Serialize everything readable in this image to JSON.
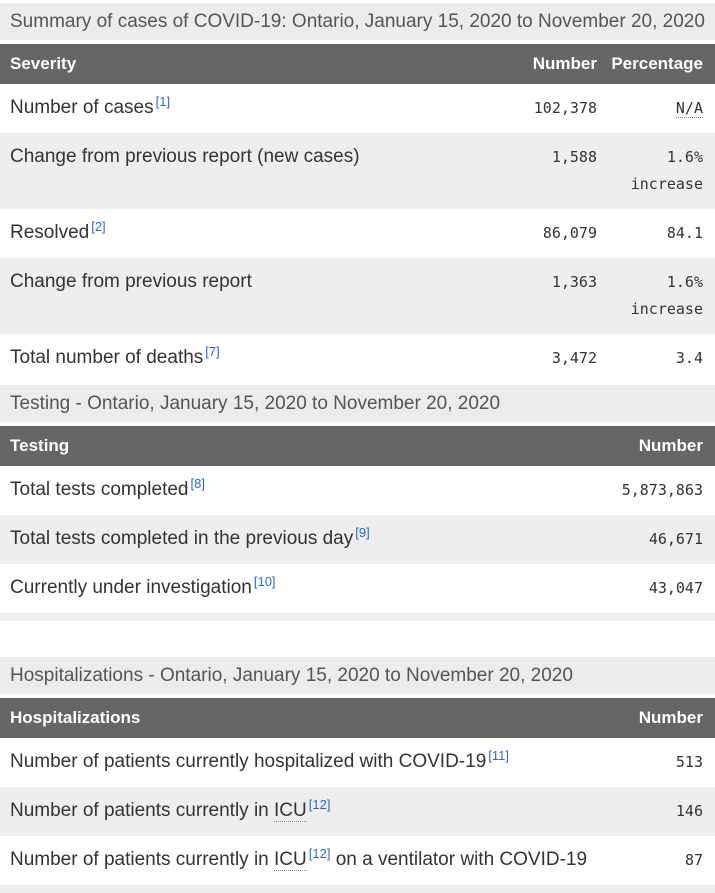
{
  "colors": {
    "caption_bg": "#ececec",
    "caption_text": "#555555",
    "table_header_bg": "#666666",
    "table_header_text": "#ffffff",
    "stripe_row_bg": "#eeeeee",
    "row_text": "#333333",
    "footnote_link": "#2b69c6"
  },
  "tables": [
    {
      "caption": "Summary of cases of COVID-19: Ontario, January 15, 2020 to November 20, 2020",
      "columns": [
        "Severity",
        "Number",
        "Percentage"
      ],
      "rows": [
        {
          "label": [
            {
              "t": "text",
              "v": "Number of cases"
            },
            {
              "t": "ref",
              "v": "[1]"
            }
          ],
          "number": "102,378",
          "percentage": [
            {
              "t": "abbr",
              "v": "N/A"
            }
          ]
        },
        {
          "label": [
            {
              "t": "text",
              "v": "Change from previous report (new cases)"
            }
          ],
          "number": "1,588",
          "percentage": [
            {
              "t": "text",
              "v": "1.6% increase"
            }
          ]
        },
        {
          "label": [
            {
              "t": "text",
              "v": "Resolved"
            },
            {
              "t": "ref",
              "v": "[2]"
            }
          ],
          "number": "86,079",
          "percentage": [
            {
              "t": "text",
              "v": "84.1"
            }
          ]
        },
        {
          "label": [
            {
              "t": "text",
              "v": "Change from previous report"
            }
          ],
          "number": "1,363",
          "percentage": [
            {
              "t": "text",
              "v": "1.6% increase"
            }
          ]
        },
        {
          "label": [
            {
              "t": "text",
              "v": "Total number of deaths"
            },
            {
              "t": "ref",
              "v": "[7]"
            }
          ],
          "number": "3,472",
          "percentage": [
            {
              "t": "text",
              "v": "3.4"
            }
          ]
        }
      ],
      "trailing_strip": false
    },
    {
      "caption": "Testing - Ontario, January 15, 2020 to November 20, 2020",
      "columns": [
        "Testing",
        "Number"
      ],
      "rows": [
        {
          "label": [
            {
              "t": "text",
              "v": "Total tests completed"
            },
            {
              "t": "ref",
              "v": "[8]"
            }
          ],
          "number": "5,873,863"
        },
        {
          "label": [
            {
              "t": "text",
              "v": "Total tests completed in the previous day"
            },
            {
              "t": "ref",
              "v": "[9]"
            }
          ],
          "number": "46,671"
        },
        {
          "label": [
            {
              "t": "text",
              "v": "Currently under investigation"
            },
            {
              "t": "ref",
              "v": "[10]"
            }
          ],
          "number": "43,047"
        }
      ],
      "trailing_strip": true
    },
    {
      "caption": "Hospitalizations - Ontario, January 15, 2020 to November 20, 2020",
      "columns": [
        "Hospitalizations",
        "Number"
      ],
      "rows": [
        {
          "label": [
            {
              "t": "text",
              "v": "Number of patients currently hospitalized with COVID-19"
            },
            {
              "t": "ref",
              "v": "[11]"
            }
          ],
          "number": "513"
        },
        {
          "label": [
            {
              "t": "text",
              "v": "Number of patients currently in "
            },
            {
              "t": "abbr",
              "v": "ICU"
            },
            {
              "t": "ref",
              "v": "[12]"
            }
          ],
          "number": "146"
        },
        {
          "label": [
            {
              "t": "text",
              "v": "Number of patients currently in "
            },
            {
              "t": "abbr",
              "v": "ICU"
            },
            {
              "t": "ref",
              "v": "[12]"
            },
            {
              "t": "text",
              "v": " on a ventilator with COVID-19"
            }
          ],
          "number": "87"
        }
      ],
      "trailing_strip": true
    }
  ]
}
